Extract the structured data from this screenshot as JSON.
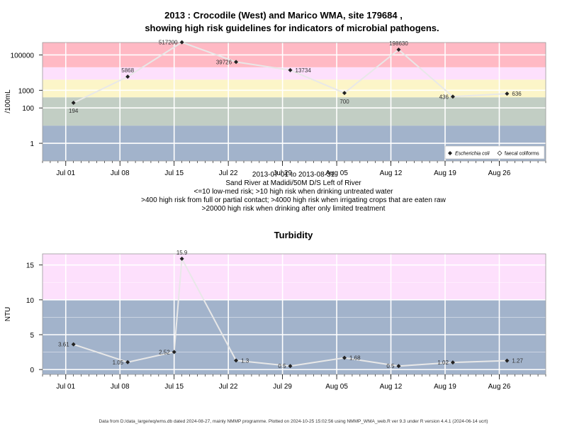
{
  "title_line1": "2013 : Crocodile (West) and Marico WMA, site 179684 ,",
  "title_line2": "showing high risk guidelines for indicators of microbial pathogens.",
  "subtitle_lines": [
    "2013-07-01 to 2013-08-31",
    "Sand River at Madidi/50M D/S Left of River",
    "<=10 low-med risk; >10 high risk when drinking untreated water",
    ">400 high risk from full or partial contact; >4000 high risk when irrigating crops that are eaten raw",
    ">20000 high risk when drinking after only limited treatment"
  ],
  "footer": "Data from D:/data_large/wq/wms.db dated 2024-08-27, mainly NMMP programme. Plotted on 2024-10-25 15:02:56 using NMMP_WMA_web.R ver 9.3 under R version 4.4.1 (2024-06-14 ucrt)",
  "colors": {
    "band_low": "#a2b3cb",
    "band_green": "#c2cec4",
    "band_yellow": "#fcf5c8",
    "band_pink": "#fde0fc",
    "band_red": "#ffb9c4",
    "line": "#e8e8e8",
    "point": "#222222",
    "grid": "#ffffff"
  },
  "chart_data": [
    {
      "type": "line",
      "title": "",
      "ylabel": "/100mL",
      "y_scale": "log10",
      "ylim": [
        0.1,
        500000
      ],
      "x_ticks": [
        "Jul 01",
        "Jul 08",
        "Jul 15",
        "Jul 22",
        "Jul 29",
        "Aug 05",
        "Aug 12",
        "Aug 19",
        "Aug 26"
      ],
      "y_ticks": [
        "1",
        "100",
        "1000",
        "100000"
      ],
      "x_range": [
        "2013-06-28",
        "2013-09-01"
      ],
      "bands": [
        {
          "from": 0.1,
          "to": 10,
          "color": "band_low"
        },
        {
          "from": 10,
          "to": 400,
          "color": "band_green"
        },
        {
          "from": 400,
          "to": 4000,
          "color": "band_yellow"
        },
        {
          "from": 4000,
          "to": 20000,
          "color": "band_pink"
        },
        {
          "from": 20000,
          "to": 500000,
          "color": "band_red"
        }
      ],
      "legend": {
        "position": "bottom-right",
        "entries": [
          "Escherichia coli",
          "faecal coliforms"
        ]
      },
      "series": [
        {
          "name": "Escherichia coli",
          "x": [
            "2013-07-02",
            "2013-07-09",
            "2013-07-16",
            "2013-07-23",
            "2013-07-30",
            "2013-08-06",
            "2013-08-13",
            "2013-08-20",
            "2013-08-27"
          ],
          "y": [
            194,
            5868,
            517200,
            39726,
            13734,
            700,
            198630,
            436,
            636
          ],
          "labels": [
            "194",
            "5868",
            "517200",
            "39726",
            "13734",
            "700",
            "198630",
            "436",
            "636"
          ]
        }
      ]
    },
    {
      "type": "line",
      "title": "Turbidity",
      "ylabel": "NTU",
      "ylim": [
        -0.7,
        16.6
      ],
      "x_ticks": [
        "Jul 01",
        "Jul 08",
        "Jul 15",
        "Jul 22",
        "Jul 29",
        "Aug 05",
        "Aug 12",
        "Aug 19",
        "Aug 26"
      ],
      "y_ticks": [
        "0",
        "5",
        "10",
        "15"
      ],
      "x_range": [
        "2013-06-28",
        "2013-09-01"
      ],
      "bands": [
        {
          "from": -0.7,
          "to": 10,
          "color": "band_low"
        },
        {
          "from": 10,
          "to": 16.6,
          "color": "band_pink"
        }
      ],
      "series": [
        {
          "x": [
            "2013-07-02",
            "2013-07-09",
            "2013-07-15",
            "2013-07-16",
            "2013-07-23",
            "2013-07-30",
            "2013-08-06",
            "2013-08-13",
            "2013-08-20",
            "2013-08-27"
          ],
          "y": [
            3.61,
            1.05,
            2.52,
            15.9,
            1.3,
            0.5,
            1.68,
            0.5,
            1.02,
            1.27
          ],
          "labels": [
            "3.61",
            "1.05",
            "2.52",
            "15.9",
            "1.3",
            "0.5",
            "1.68",
            "0.5",
            "1.02",
            "1.27"
          ]
        }
      ]
    }
  ]
}
